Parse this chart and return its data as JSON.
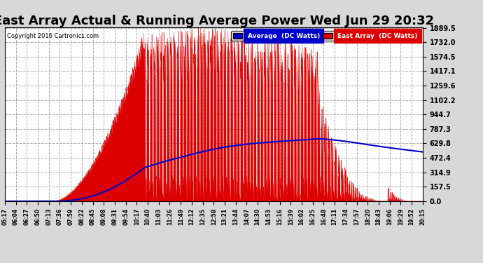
{
  "title": "East Array Actual & Running Average Power Wed Jun 29 20:32",
  "copyright": "Copyright 2016 Cartronics.com",
  "legend_avg": "Average  (DC Watts)",
  "legend_east": "East Array  (DC Watts)",
  "ylabel_ticks": [
    0.0,
    157.5,
    314.9,
    472.4,
    629.8,
    787.3,
    944.7,
    1102.2,
    1259.6,
    1417.1,
    1574.5,
    1732.0,
    1889.5
  ],
  "ylim": [
    0,
    1889.5
  ],
  "bg_color": "#d8d8d8",
  "plot_bg_color": "#ffffff",
  "title_fontsize": 13,
  "grid_color": "#aaaaaa",
  "east_array_color": "#dd0000",
  "average_color": "#0000cc",
  "x_labels": [
    "05:17",
    "06:04",
    "06:27",
    "06:50",
    "07:13",
    "07:36",
    "07:59",
    "08:22",
    "08:45",
    "09:08",
    "09:31",
    "09:54",
    "10:17",
    "10:40",
    "11:03",
    "11:26",
    "11:49",
    "12:12",
    "12:35",
    "12:58",
    "13:21",
    "13:44",
    "14:07",
    "14:30",
    "14:53",
    "15:16",
    "15:39",
    "16:02",
    "16:25",
    "16:48",
    "17:11",
    "17:34",
    "17:57",
    "18:20",
    "18:43",
    "19:06",
    "19:29",
    "19:52",
    "20:15"
  ]
}
